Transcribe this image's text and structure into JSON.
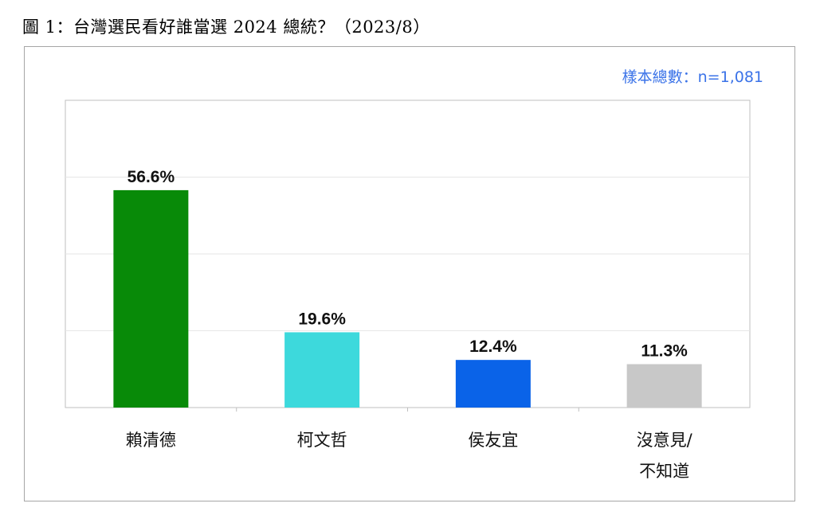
{
  "figure_title": "圖 1：台灣選民看好誰當選 2024 總統？（2023/8）",
  "sample_label": "樣本總數：n=1,081",
  "chart_data": {
    "type": "bar",
    "categories": [
      "賴清德",
      "柯文哲",
      "侯友宜",
      "沒意見/不知道"
    ],
    "category_lines": [
      [
        "賴清德"
      ],
      [
        "柯文哲"
      ],
      [
        "侯友宜"
      ],
      [
        "沒意見/",
        "不知道"
      ]
    ],
    "values": [
      56.6,
      19.6,
      12.4,
      11.3
    ],
    "value_labels": [
      "56.6%",
      "19.6%",
      "12.4%",
      "11.3%"
    ],
    "colors": [
      "#088a08",
      "#3dd9dc",
      "#0a63e8",
      "#c8c8c8"
    ],
    "ylim": [
      0,
      80
    ],
    "grid": true,
    "axis_visible": false,
    "legend": "none"
  }
}
